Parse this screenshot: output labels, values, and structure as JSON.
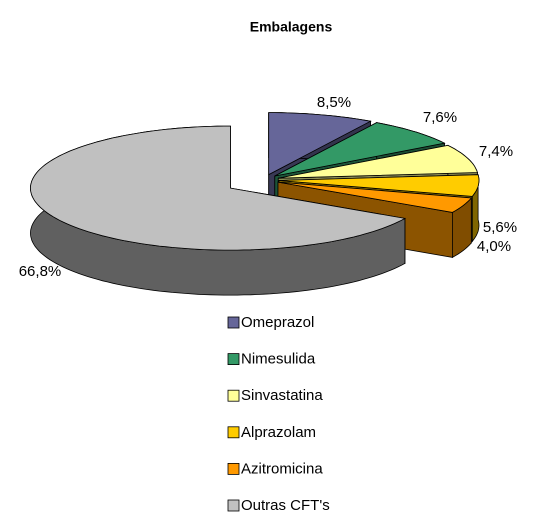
{
  "chart_data": {
    "type": "pie3d",
    "title": "Embalagens",
    "categories": [
      "Omeprazol",
      "Nimesulida",
      "Sinvastatina",
      "Alprazolam",
      "Azitromicina",
      "Outras CFT's"
    ],
    "values": [
      8.5,
      7.6,
      7.4,
      5.6,
      4.0,
      66.8
    ],
    "value_labels": [
      "8,5%",
      "7,6%",
      "7,4%",
      "5,6%",
      "4,0%",
      "66,8%"
    ],
    "colors": [
      "#666699",
      "#339966",
      "#FFFF99",
      "#FFCC00",
      "#FF9900",
      "#C0C0C0"
    ],
    "legend": "bottom"
  }
}
